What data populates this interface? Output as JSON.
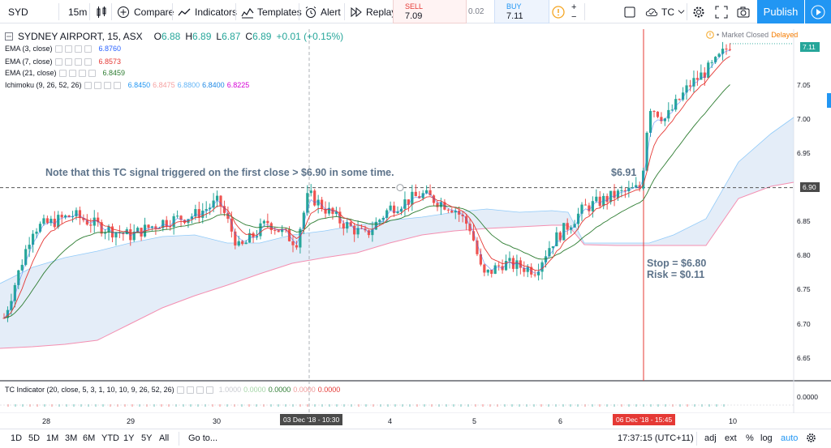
{
  "toolbar": {
    "symbol": "SYD",
    "interval": "15m",
    "compare": "Compare",
    "indicators": "Indicators",
    "templates": "Templates",
    "alert": "Alert",
    "replay": "Replay",
    "sell_label": "SELL",
    "sell_value": "7.09",
    "spread": "0.02",
    "buy_label": "BUY",
    "buy_value": "7.11",
    "user": "TC",
    "publish": "Publish"
  },
  "legend": {
    "title": "SYDNEY AIRPORT, 15, ASX",
    "o_label": "O",
    "o_value": "6.88",
    "h_label": "H",
    "h_value": "6.89",
    "l_label": "L",
    "l_value": "6.87",
    "c_label": "C",
    "c_value": "6.89",
    "change": "+0.01 (+0.15%)",
    "ema3": "EMA (3, close)",
    "ema3_value": "6.8760",
    "ema7": "EMA (7, close)",
    "ema7_value": "6.8573",
    "ema21": "EMA (21, close)",
    "ema21_value": "6.8459",
    "ichimoku": "Ichimoku (9, 26, 52, 26)",
    "ichi_v1": "6.8450",
    "ichi_v2": "6.8475",
    "ichi_v3": "6.8800",
    "ichi_v4": "6.8400",
    "ichi_v5": "6.8225",
    "market_status": "Market Closed",
    "delayed": "Delayed"
  },
  "indicator_pane": {
    "label": "TC Indicator (20, close, 5, 3, 1, 10, 10, 9, 26, 52, 26)",
    "v1": "1.0000",
    "v2": "0.0000",
    "v3": "0.0000",
    "v4": "0.0000",
    "v5": "0.0000",
    "axis_value": "0.0000"
  },
  "price_axis": {
    "ticks": [
      "7.05",
      "7.00",
      "6.95",
      "6.85",
      "6.80",
      "6.75",
      "6.70",
      "6.65"
    ],
    "current_price": "7.11",
    "crosshair_price": "6.90"
  },
  "time_axis": {
    "labels": [
      "28",
      "29",
      "30",
      "4",
      "5",
      "6",
      "10"
    ],
    "crosshair_time": "03 Dec '18 - 10:30",
    "marker_time": "06 Dec '18 - 15:45"
  },
  "annotations": {
    "note": "Note that this TC signal triggered on the first close > $6.90 in some time.",
    "price_tag": "$6.91",
    "stop": "Stop = $6.80",
    "risk": "Risk = $0.11"
  },
  "bottombar": {
    "ranges": [
      "1D",
      "5D",
      "1M",
      "3M",
      "6M",
      "YTD",
      "1Y",
      "5Y",
      "All"
    ],
    "goto": "Go to...",
    "clock": "17:37:15 (UTC+11)",
    "adj": "adj",
    "ext": "ext",
    "percent": "%",
    "log": "log",
    "auto": "auto"
  },
  "colors": {
    "up": "#26a69a",
    "down": "#ef5350",
    "ema3": "#2962ff",
    "ema7": "#e53935",
    "ema21": "#2e7d32",
    "accent": "#2196f3"
  },
  "chart_data": {
    "type": "candlestick",
    "ylim": [
      6.62,
      7.14
    ],
    "reference_line": 6.9,
    "stop_level": 6.8,
    "last_close": 6.89,
    "current_price": 7.11
  }
}
